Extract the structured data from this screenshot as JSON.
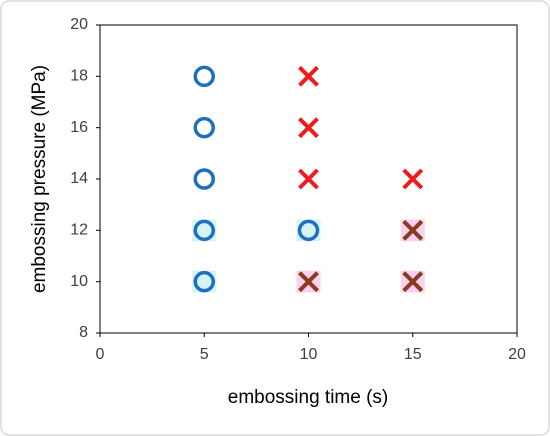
{
  "chart_data": {
    "type": "scatter",
    "x_label": "embossing time (s)",
    "y_label": "embossing pressure (MPa)",
    "xlim": [
      0,
      20
    ],
    "xticks": [
      0,
      5,
      10,
      15,
      20
    ],
    "ylim": [
      8,
      20
    ],
    "yticks": [
      8,
      10,
      12,
      14,
      16,
      18,
      20
    ],
    "series": [
      {
        "marker": "circle",
        "color": "#1f6fbf",
        "highlight": "#d6f4f8",
        "x": [
          5,
          5,
          10
        ],
        "values": [
          10,
          12,
          12
        ]
      },
      {
        "marker": "circle",
        "color": "#1f6fbf",
        "x": [
          5,
          5,
          5
        ],
        "values": [
          14,
          16,
          18
        ]
      },
      {
        "marker": "cross",
        "color": "#ee1c1c",
        "x": [
          10,
          10,
          10,
          15
        ],
        "values": [
          14,
          16,
          18,
          14
        ]
      },
      {
        "marker": "cross",
        "color": "#8b3a1e",
        "highlight": "#f8d2ee",
        "x": [
          10,
          15,
          15
        ],
        "values": [
          10,
          10,
          12
        ]
      }
    ]
  }
}
